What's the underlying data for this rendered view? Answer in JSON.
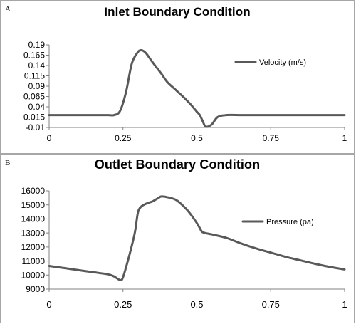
{
  "chart_data": [
    {
      "type": "line",
      "panel_label": "A",
      "title": "Inlet Boundary Condition",
      "xlabel": "",
      "ylabel": "",
      "xlim": [
        0,
        1
      ],
      "ylim": [
        -0.01,
        0.19
      ],
      "x_ticks": [
        "0",
        "0.25",
        "0.5",
        "0.75",
        "1"
      ],
      "x_tick_values": [
        0,
        0.25,
        0.5,
        0.75,
        1
      ],
      "y_ticks": [
        "0.19",
        "0.165",
        "0.14",
        "0.115",
        "0.09",
        "0.065",
        "0.04",
        "0.015",
        "-0.01"
      ],
      "y_tick_values": [
        0.19,
        0.165,
        0.14,
        0.115,
        0.09,
        0.065,
        0.04,
        0.015,
        -0.01
      ],
      "grid": false,
      "legend_position": "right",
      "series": [
        {
          "name": "Velocity (m/s)",
          "color": "#595959",
          "x": [
            0,
            0.05,
            0.1,
            0.15,
            0.2,
            0.22,
            0.24,
            0.26,
            0.28,
            0.3,
            0.31,
            0.32,
            0.33,
            0.35,
            0.38,
            0.4,
            0.43,
            0.46,
            0.48,
            0.5,
            0.51,
            0.52,
            0.53,
            0.55,
            0.57,
            0.6,
            0.65,
            0.7,
            0.75,
            0.8,
            0.85,
            0.9,
            0.95,
            1
          ],
          "y": [
            0.02,
            0.02,
            0.02,
            0.02,
            0.02,
            0.02,
            0.03,
            0.075,
            0.145,
            0.172,
            0.177,
            0.175,
            0.168,
            0.148,
            0.12,
            0.1,
            0.08,
            0.06,
            0.045,
            0.028,
            0.02,
            0.005,
            -0.008,
            -0.003,
            0.015,
            0.02,
            0.02,
            0.02,
            0.02,
            0.02,
            0.02,
            0.02,
            0.02,
            0.02
          ]
        }
      ]
    },
    {
      "type": "line",
      "panel_label": "B",
      "title": "Outlet Boundary Condition",
      "xlabel": "",
      "ylabel": "",
      "xlim": [
        0,
        1
      ],
      "ylim": [
        9000,
        16000
      ],
      "x_ticks": [
        "0",
        "0.25",
        "0.5",
        "0.75",
        "1"
      ],
      "x_tick_values": [
        0,
        0.25,
        0.5,
        0.75,
        1
      ],
      "y_ticks": [
        "16000",
        "15000",
        "14000",
        "13000",
        "12000",
        "11000",
        "10000",
        "9000"
      ],
      "y_tick_values": [
        16000,
        15000,
        14000,
        13000,
        12000,
        11000,
        10000,
        9000
      ],
      "grid": false,
      "legend_position": "right",
      "series": [
        {
          "name": "Pressure (pa)",
          "color": "#595959",
          "x": [
            0,
            0.05,
            0.1,
            0.15,
            0.2,
            0.22,
            0.24,
            0.25,
            0.27,
            0.29,
            0.3,
            0.31,
            0.33,
            0.35,
            0.37,
            0.38,
            0.4,
            0.43,
            0.46,
            0.48,
            0.5,
            0.51,
            0.52,
            0.55,
            0.6,
            0.65,
            0.7,
            0.75,
            0.8,
            0.85,
            0.9,
            0.95,
            1
          ],
          "y": [
            10650,
            10500,
            10350,
            10200,
            10050,
            9900,
            9650,
            9850,
            11300,
            13000,
            14400,
            14850,
            15100,
            15250,
            15500,
            15600,
            15550,
            15350,
            14800,
            14300,
            13700,
            13350,
            13050,
            12900,
            12650,
            12250,
            11900,
            11600,
            11300,
            11050,
            10800,
            10580,
            10400
          ]
        }
      ]
    }
  ]
}
